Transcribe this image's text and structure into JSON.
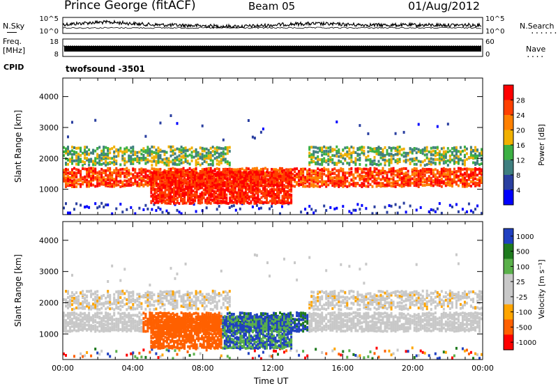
{
  "header": {
    "station": "Prince George (fitACF)",
    "beam": "Beam 05",
    "date": "01/Aug/2012"
  },
  "labels": {
    "nsky": "N.Sky",
    "nsearch": "N.Search",
    "freq": "Freq.",
    "mhz": "[MHz]",
    "nave": "Nave",
    "cpid": "CPID",
    "cpid_value": "twofsound -3501",
    "time_axis": "Time UT",
    "slant_range": "Slant Range [km]"
  },
  "colors": {
    "power": [
      "#0000ff",
      "#2a3fa0",
      "#3f7f7f",
      "#3cb043",
      "#f0b000",
      "#ff8000",
      "#ff4000",
      "#ff0000"
    ],
    "velocity": [
      "#2040c0",
      "#1e7a1e",
      "#5ab04a",
      "#c8c8c8",
      "#c8c8c8",
      "#ffa500",
      "#ff6000",
      "#ff0000"
    ]
  },
  "chart_data": [
    {
      "type": "line",
      "name": "noise-panel",
      "left_ticks": [
        "10^5",
        "10^0"
      ],
      "right_ticks": [
        "10^5",
        "10^0"
      ]
    },
    {
      "type": "bar",
      "name": "freq-nave-panel",
      "left_ticks": [
        "18",
        "8"
      ],
      "right_ticks": [
        "60",
        "0"
      ]
    },
    {
      "type": "heatmap",
      "name": "power",
      "xlabel": "Time UT",
      "ylabel": "Slant Range [km]",
      "xlim": [
        0,
        24
      ],
      "ylim": [
        180,
        4600
      ],
      "y_ticks": [
        "1000",
        "2000",
        "3000",
        "4000"
      ],
      "colorbar_label": "Power [dB]",
      "colorbar_ticks": [
        "4",
        "8",
        "12",
        "16",
        "20",
        "24",
        "28"
      ],
      "colorbar_range": [
        0,
        32
      ]
    },
    {
      "type": "heatmap",
      "name": "velocity",
      "xlabel": "Time UT",
      "ylabel": "Slant Range [km]",
      "xlim": [
        0,
        24
      ],
      "ylim": [
        180,
        4600
      ],
      "y_ticks": [
        "1000",
        "2000",
        "3000",
        "4000"
      ],
      "x_ticks": [
        "00:00",
        "04:00",
        "08:00",
        "12:00",
        "16:00",
        "20:00",
        "00:00"
      ],
      "colorbar_label": "Velocity [m s⁻¹]",
      "colorbar_ticks": [
        "1000",
        "500",
        "100",
        "25",
        "-25",
        "-100",
        "-500",
        "-1000"
      ]
    }
  ]
}
